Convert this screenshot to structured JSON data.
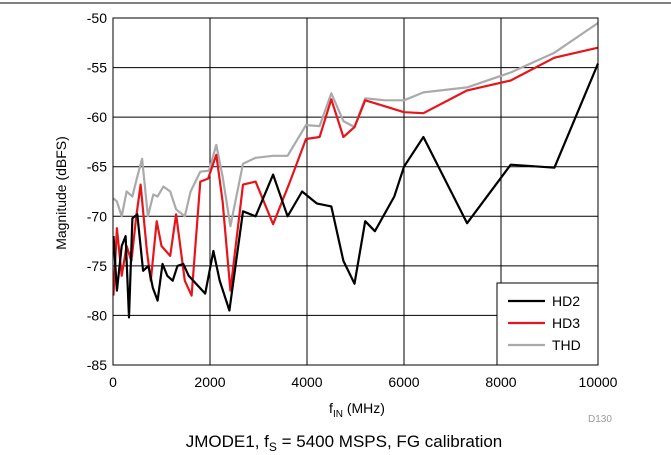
{
  "chart_data": {
    "type": "line",
    "xlabel": "f",
    "xlabel_sub": "IN",
    "xlabel_unit": " (MHz)",
    "ylabel": "Magnitude (dBFS)",
    "xlim": [
      0,
      10000
    ],
    "ylim": [
      -85,
      -50
    ],
    "xticks": [
      0,
      2000,
      4000,
      6000,
      8000,
      10000
    ],
    "yticks": [
      -85,
      -80,
      -75,
      -70,
      -65,
      -60,
      -55,
      -50
    ],
    "grid": true,
    "legend_position": "bottom-right",
    "figure_code": "D130",
    "caption": {
      "p1": "JMODE1, f",
      "sub": "S",
      "p2": " = 5400 MSPS, FG calibration"
    },
    "series": [
      {
        "name": "HD2",
        "color": "#000000",
        "points": [
          [
            10,
            -72
          ],
          [
            80,
            -77.5
          ],
          [
            180,
            -73
          ],
          [
            260,
            -72
          ],
          [
            330,
            -80.2
          ],
          [
            400,
            -70.2
          ],
          [
            500,
            -69.8
          ],
          [
            620,
            -75.5
          ],
          [
            730,
            -75
          ],
          [
            820,
            -77.2
          ],
          [
            920,
            -78.5
          ],
          [
            1020,
            -74.8
          ],
          [
            1120,
            -76
          ],
          [
            1230,
            -76.5
          ],
          [
            1330,
            -75
          ],
          [
            1450,
            -74.8
          ],
          [
            1560,
            -76
          ],
          [
            1900,
            -77.8
          ],
          [
            2070,
            -73.5
          ],
          [
            2200,
            -76.5
          ],
          [
            2400,
            -79.5
          ],
          [
            2680,
            -69.5
          ],
          [
            2940,
            -70
          ],
          [
            3300,
            -65.8
          ],
          [
            3600,
            -70
          ],
          [
            3900,
            -67.5
          ],
          [
            4200,
            -68.7
          ],
          [
            4500,
            -69
          ],
          [
            4750,
            -74.5
          ],
          [
            4980,
            -76.8
          ],
          [
            5200,
            -70.5
          ],
          [
            5400,
            -71.5
          ],
          [
            5800,
            -68
          ],
          [
            6000,
            -65
          ],
          [
            6400,
            -62
          ],
          [
            7300,
            -70.7
          ],
          [
            8200,
            -64.8
          ],
          [
            9100,
            -65.1
          ],
          [
            10000,
            -54.6
          ]
        ]
      },
      {
        "name": "HD3",
        "color": "#e8141c",
        "points": [
          [
            10,
            -78
          ],
          [
            80,
            -71.2
          ],
          [
            180,
            -76
          ],
          [
            280,
            -73
          ],
          [
            380,
            -74.5
          ],
          [
            480,
            -70
          ],
          [
            570,
            -66.8
          ],
          [
            700,
            -73.5
          ],
          [
            780,
            -76.5
          ],
          [
            900,
            -70.5
          ],
          [
            1000,
            -73
          ],
          [
            1180,
            -74
          ],
          [
            1300,
            -69.8
          ],
          [
            1480,
            -76.5
          ],
          [
            1620,
            -78
          ],
          [
            1800,
            -66.5
          ],
          [
            1960,
            -66.2
          ],
          [
            2130,
            -63.8
          ],
          [
            2260,
            -68.5
          ],
          [
            2420,
            -77.5
          ],
          [
            2680,
            -66.8
          ],
          [
            2940,
            -66.5
          ],
          [
            3300,
            -70.8
          ],
          [
            3650,
            -66.5
          ],
          [
            3980,
            -62.2
          ],
          [
            4260,
            -62
          ],
          [
            4500,
            -58.2
          ],
          [
            4750,
            -62
          ],
          [
            4980,
            -61
          ],
          [
            5200,
            -58.3
          ],
          [
            5600,
            -58.9
          ],
          [
            6000,
            -59.5
          ],
          [
            6400,
            -59.6
          ],
          [
            7300,
            -57.3
          ],
          [
            8200,
            -56.3
          ],
          [
            9100,
            -54
          ],
          [
            10000,
            -53
          ]
        ]
      },
      {
        "name": "THD",
        "color": "#aaaaaa",
        "points": [
          [
            10,
            -68.2
          ],
          [
            80,
            -68.5
          ],
          [
            180,
            -70
          ],
          [
            280,
            -67.5
          ],
          [
            400,
            -68
          ],
          [
            500,
            -66
          ],
          [
            600,
            -64.2
          ],
          [
            720,
            -70
          ],
          [
            830,
            -67.8
          ],
          [
            920,
            -68
          ],
          [
            1040,
            -67
          ],
          [
            1180,
            -67.5
          ],
          [
            1300,
            -69.3
          ],
          [
            1480,
            -70
          ],
          [
            1600,
            -67.5
          ],
          [
            1800,
            -65.5
          ],
          [
            1980,
            -65.4
          ],
          [
            2130,
            -62.8
          ],
          [
            2260,
            -66
          ],
          [
            2420,
            -71
          ],
          [
            2680,
            -64.7
          ],
          [
            2940,
            -64.1
          ],
          [
            3300,
            -63.9
          ],
          [
            3600,
            -63.9
          ],
          [
            3980,
            -60.8
          ],
          [
            4260,
            -60.9
          ],
          [
            4500,
            -57.6
          ],
          [
            4750,
            -60.4
          ],
          [
            4980,
            -61
          ],
          [
            5200,
            -58.1
          ],
          [
            5600,
            -58.3
          ],
          [
            6000,
            -58.3
          ],
          [
            6400,
            -57.5
          ],
          [
            7300,
            -57
          ],
          [
            8200,
            -55.5
          ],
          [
            9100,
            -53.5
          ],
          [
            10000,
            -50.5
          ]
        ]
      }
    ]
  }
}
